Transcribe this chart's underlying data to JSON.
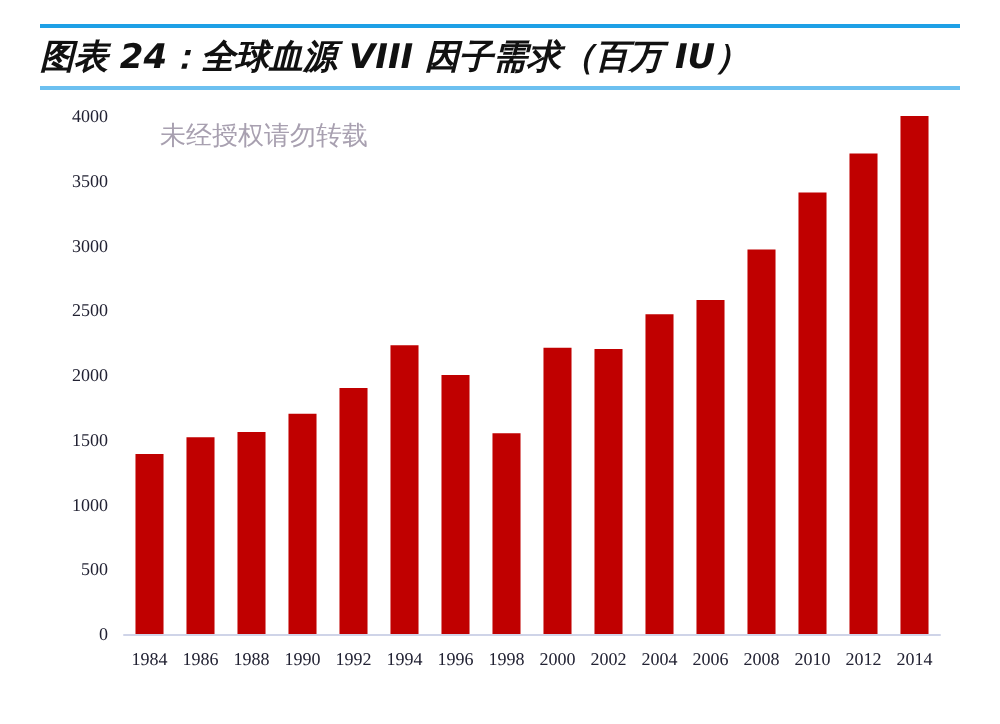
{
  "chart_data": {
    "type": "bar",
    "title": "图表 24：全球血源 VIII 因子需求（百万 IU）",
    "annotations": [
      "未经授权请勿转载"
    ],
    "categories": [
      "1984",
      "1986",
      "1988",
      "1990",
      "1992",
      "1994",
      "1996",
      "1998",
      "2000",
      "2002",
      "2004",
      "2006",
      "2008",
      "2010",
      "2012",
      "2014"
    ],
    "values": [
      1390,
      1520,
      1560,
      1700,
      1900,
      2230,
      2000,
      1550,
      2210,
      2200,
      2470,
      2580,
      2970,
      3410,
      3710,
      4000
    ],
    "color": "#c00000",
    "ylim": [
      0,
      4000
    ],
    "yticks": [
      0,
      500,
      1000,
      1500,
      2000,
      2500,
      3000,
      3500,
      4000
    ],
    "grid": false
  }
}
